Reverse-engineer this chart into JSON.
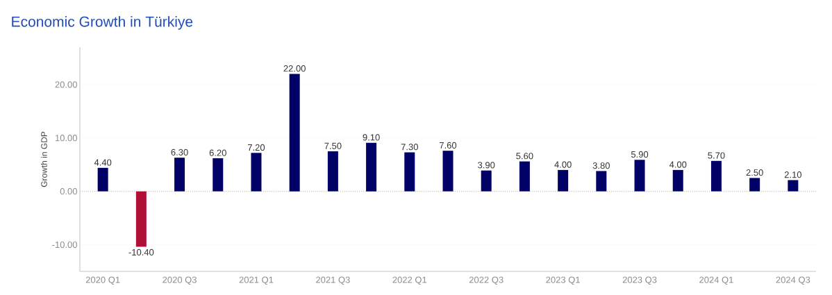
{
  "chart_data": {
    "type": "bar",
    "title": "Economic Growth in Türkiye",
    "ylabel": "Growth in GDP",
    "categories": [
      "2020 Q1",
      null,
      "2020 Q3",
      null,
      "2021 Q1",
      null,
      "2021 Q3",
      null,
      "2022 Q1",
      null,
      "2022 Q3",
      null,
      "2023 Q1",
      null,
      "2023 Q3",
      null,
      "2024 Q1",
      null,
      "2024 Q3"
    ],
    "values": [
      4.4,
      -10.4,
      6.3,
      6.2,
      7.2,
      22.0,
      7.5,
      9.1,
      7.3,
      7.6,
      3.9,
      5.6,
      4.0,
      3.8,
      5.9,
      4.0,
      5.7,
      2.5,
      2.1
    ],
    "value_labels": [
      "4.40",
      "-10.40",
      "6.30",
      "6.20",
      "7.20",
      "22.00",
      "7.50",
      "9.10",
      "7.30",
      "7.60",
      "3.90",
      "5.60",
      "4.00",
      "3.80",
      "5.90",
      "4.00",
      "5.70",
      "2.50",
      "2.10"
    ],
    "colors": [
      "#000066",
      "#b01038",
      "#000066",
      "#000066",
      "#000066",
      "#000066",
      "#000066",
      "#000066",
      "#000066",
      "#000066",
      "#000066",
      "#000066",
      "#000066",
      "#000066",
      "#000066",
      "#000066",
      "#000066",
      "#000066",
      "#000066"
    ],
    "ylim": [
      -15,
      27
    ],
    "yticks": [
      {
        "value": -10,
        "label": "-10.00"
      },
      {
        "value": 0,
        "label": "0.00"
      },
      {
        "value": 10,
        "label": "10.00"
      },
      {
        "value": 20,
        "label": "20.00"
      }
    ],
    "ref_lines": [
      {
        "axis": "y",
        "value": 0,
        "color": "#bbbbbb",
        "line_style": "dotted"
      }
    ],
    "grid": "y"
  }
}
